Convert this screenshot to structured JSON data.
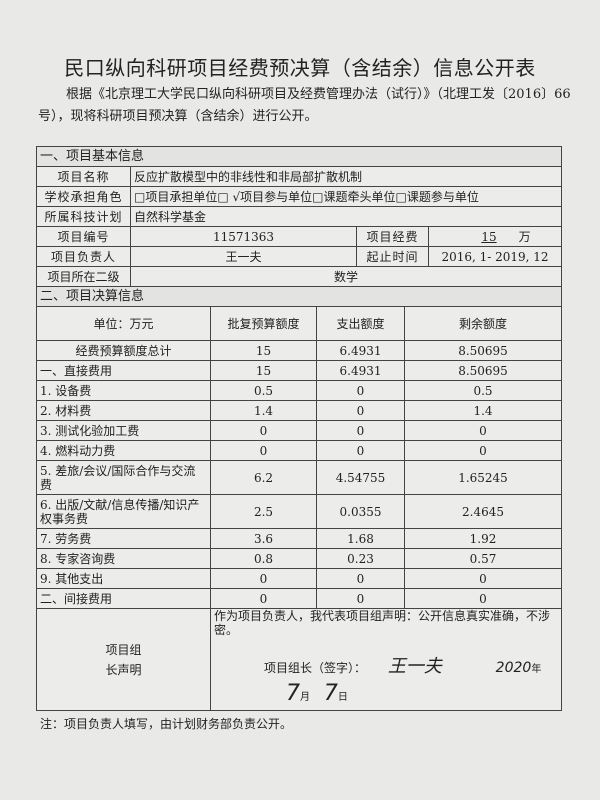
{
  "title": "民口纵向科研项目经费预决算（含结余）信息公开表",
  "intro": "根据《北京理工大学民口纵向科研项目及经费管理办法（试行）》（北理工发〔2016〕66号），现将科研项目预决算（含结余）进行公开。",
  "section1": {
    "heading": "一、项目基本信息",
    "name_label": "项目名称",
    "name": "反应扩散模型中的非线性和非局部扩散机制",
    "role_label": "学校承担角色",
    "role": "□项目承担单位□ √项目参与单位□课题牵头单位□课题参与单位",
    "plan_label": "所属科技计划",
    "plan": "自然科学基金",
    "number_label": "项目编号",
    "number": "11571363",
    "funding_label": "项目经费",
    "funding": "15",
    "funding_unit": "万",
    "leader_label": "项目负责人",
    "leader": "王一夫",
    "period_label": "起止时间",
    "period": "2016, 1- 2019, 12",
    "dept_label": "项目所在二级",
    "dept": "数学"
  },
  "section2": {
    "heading": "二、项目决算信息",
    "headers": [
      "单位：万元",
      "批复预算额度",
      "支出额度",
      "剩余额度"
    ],
    "rows": [
      [
        "经费预算额度总计",
        "15",
        "6.4931",
        "8.50695"
      ],
      [
        "一、直接费用",
        "15",
        "6.4931",
        "8.50695"
      ],
      [
        "1. 设备费",
        "0.5",
        "0",
        "0.5"
      ],
      [
        "2. 材料费",
        "1.4",
        "0",
        "1.4"
      ],
      [
        "3. 测试化验加工费",
        "0",
        "0",
        "0"
      ],
      [
        "4. 燃料动力费",
        "0",
        "0",
        "0"
      ],
      [
        "5. 差旅/会议/国际合作与交流费",
        "6.2",
        "4.54755",
        "1.65245"
      ],
      [
        "6. 出版/文献/信息传播/知识产权事务费",
        "2.5",
        "0.0355",
        "2.4645"
      ],
      [
        "7. 劳务费",
        "3.6",
        "1.68",
        "1.92"
      ],
      [
        "8. 专家咨询费",
        "0.8",
        "0.23",
        "0.57"
      ],
      [
        "9. 其他支出",
        "0",
        "0",
        "0"
      ],
      [
        "二、间接费用",
        "0",
        "0",
        "0"
      ]
    ]
  },
  "declaration": {
    "label": "项目组长声明",
    "text": "作为项目负责人，我代表项目组声明：公开信息真实准确，不涉密。",
    "sign_label": "项目组长（签字）：",
    "signature": "王一夫",
    "date_year": "2020",
    "year_char": "年",
    "month": "7",
    "month_char": "月",
    "day": "7",
    "day_char": "日"
  },
  "note": "注：项目负责人填写，由计划财务部负责公开。"
}
